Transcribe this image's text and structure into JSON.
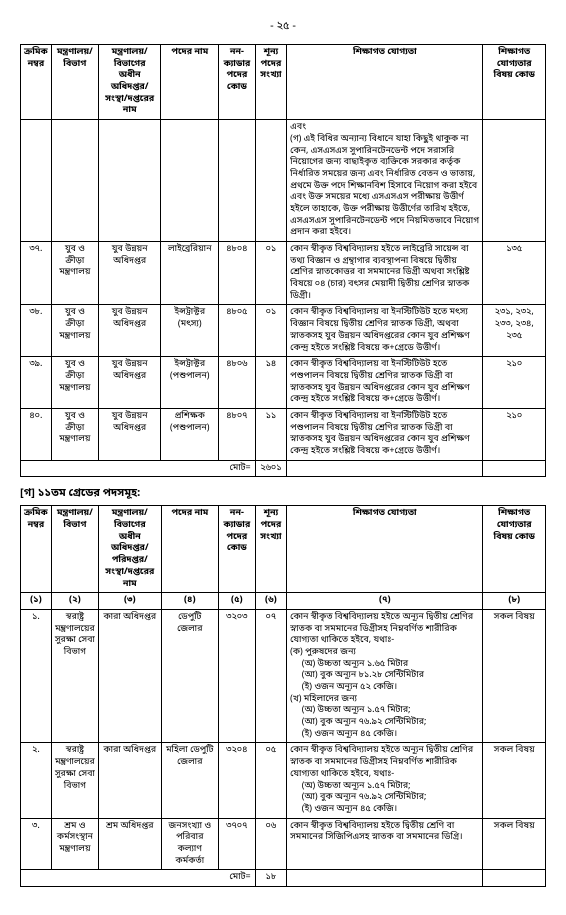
{
  "page_number": "- ২৫ -",
  "table1": {
    "headers": {
      "serial": "ক্রমিক নম্বর",
      "ministry": "মন্ত্রণালয়/ বিভাগ",
      "dept": "মন্ত্রণালয়/বিভাগের অধীন অধিদপ্তর/ সংস্থা/দপ্তরের নাম",
      "post": "পদের নাম",
      "code": "নন-ক্যাডার পদের কোড",
      "count": "শূন্য পদের সংখ্যা",
      "qual": "শিক্ষাগত যোগ্যতা",
      "subcode": "শিক্ষাগত যোগ্যতার বিষয় কোড"
    },
    "rows": [
      {
        "serial": "",
        "ministry": "",
        "dept": "",
        "post": "",
        "code": "",
        "count": "",
        "qual": "এবং\n(গ) এই বিধির অন্যান্য বিধানে যাহা কিছুই থাকুক না কেন, এসএসএস সুপারিনটেনডেন্ট পদে সরাসরি নিয়োগের জন্য বাছাইকৃত ব্যক্তিকে সরকার কর্তৃক নির্ধারিত সময়ের জন্য এবং নির্ধারিত বেতন ও ভাতায়, প্রথমে উক্ত পদে শিক্ষানবিশ হিসাবে নিয়োগ করা হইবে এবং উক্ত সময়ের মধ্যে এসএসএস পরীক্ষায় উত্তীর্ণ হইলে তাহাকে, উক্ত পরীক্ষায় উত্তীর্ণের তারিখ হইতে, এসএসএস সুপারিনটেনডেন্ট পদে নিয়মিতভাবে নিয়োগ প্রদান করা হইবে।",
        "subcode": ""
      },
      {
        "serial": "৩৭.",
        "ministry": "যুব ও ক্রীড়া মন্ত্রণালয়",
        "dept": "যুব উন্নয়ন অধিদপ্তর",
        "post": "লাইব্রেরিয়ান",
        "code": "৪৮০৪",
        "count": "০১",
        "qual": "কোন স্বীকৃত বিশ্ববিদ্যালয় হইতে লাইব্রেরি সায়েন্স বা তথ্য বিজ্ঞান ও গ্রন্থাগার ব্যবস্থাপনা বিষয়ে দ্বিতীয় শ্রেণির স্নাতকোত্তর বা সমমানের ডিগ্রী অথবা সংশ্লিষ্ট বিষয়ে ০৪ (চার) বৎসর মেয়াদী দ্বিতীয় শ্রেণির স্নাতক ডিগ্রী।",
        "subcode": "১৩৫"
      },
      {
        "serial": "৩৮.",
        "ministry": "যুব ও ক্রীড়া মন্ত্রণালয়",
        "dept": "যুব উন্নয়ন অধিদপ্তর",
        "post": "ইন্সট্রাক্টর (মৎস্য)",
        "code": "৪৮০৫",
        "count": "০১",
        "qual": "কোন স্বীকৃত বিশ্ববিদ্যালয় বা ইনস্টিটিউট হতে মৎস্য বিজ্ঞান বিষয়ে দ্বিতীয় শ্রেণির স্নাতক ডিগ্রী, অথবা স্নাতকসহ যুব উন্নয়ন অধিদপ্তরের কোন যুব প্রশিক্ষণ কেন্দ্র হইতে সংশ্লিষ্ট বিষয়ে ক+গ্রেডে উত্তীর্ণ।",
        "subcode": "২৩১, ২৩২, ২৩৩, ২৩৪, ২৩৫"
      },
      {
        "serial": "৩৯.",
        "ministry": "যুব ও ক্রীড়া মন্ত্রণালয়",
        "dept": "যুব উন্নয়ন অধিদপ্তর",
        "post": "ইন্সট্রাক্টর (পশুপালন)",
        "code": "৪৮০৬",
        "count": "১৪",
        "qual": "কোন স্বীকৃত বিশ্ববিদ্যালয় বা ইনস্টিটিউট হতে পশুপালন বিষয়ে দ্বিতীয় শ্রেণির স্নাতক ডিগ্রী বা স্নাতকসহ যুব উন্নয়ন অধিদপ্তরের কোন যুব প্রশিক্ষণ কেন্দ্র হইতে সংশ্লিষ্ট বিষয়ে ক+গ্রেডে উত্তীর্ণ।",
        "subcode": "২১০"
      },
      {
        "serial": "৪০.",
        "ministry": "যুব ও ক্রীড়া মন্ত্রণালয়",
        "dept": "যুব উন্নয়ন অধিদপ্তর",
        "post": "প্রশিক্ষক (পশুপালন)",
        "code": "৪৮০৭",
        "count": "১১",
        "qual": "কোন স্বীকৃত বিশ্ববিদ্যালয় বা ইনস্টিটিউট হতে পশুপালন বিষয়ে দ্বিতীয় শ্রেণির স্নাতক ডিগ্রী বা স্নাতকসহ যুব উন্নয়ন অধিদপ্তরের কোন যুব প্রশিক্ষণ কেন্দ্র হইতে সংশ্লিষ্ট বিষয়ে ক+গ্রেডে উত্তীর্ণ।",
        "subcode": "২১০"
      }
    ],
    "total_label": "মোট=",
    "total_value": "২৬০১"
  },
  "section_title": "[গ] ১১তম গ্রেডের পদসমূহ:",
  "table2": {
    "headers": {
      "serial": "ক্রমিক নম্বর",
      "ministry": "মন্ত্রণালয়/ বিভাগ",
      "dept": "মন্ত্রণালয়/ বিভাগের অধীন অধিদপ্তর/ পরিদপ্তর/ সংস্থা/দপ্তরের নাম",
      "post": "পদের নাম",
      "code": "নন-ক্যাডার পদের কোড",
      "count": "শূন্য পদের সংখ্যা",
      "qual": "শিক্ষাগত যোগ্যতা",
      "subcode": "শিক্ষাগত যোগ্যতার বিষয় কোড"
    },
    "num_row": {
      "c1": "(১)",
      "c2": "(২)",
      "c3": "(৩)",
      "c4": "(৪)",
      "c5": "(৫)",
      "c6": "(৬)",
      "c7": "(৭)",
      "c8": "(৮)"
    },
    "rows": [
      {
        "serial": "১.",
        "ministry": "স্বরাষ্ট্র মন্ত্রণালয়ের সুরক্ষা সেবা বিভাগ",
        "dept": "কারা অধিদপ্তর",
        "post": "ডেপুটি জেলার",
        "code": "৩২০৩",
        "count": "০৭",
        "qual": "কোন স্বীকৃত বিশ্ববিদ্যালয় হইতে অন্যূন দ্বিতীয় শ্রেণির স্নাতক বা সমমানের ডিগ্রীসহ নিম্নবর্ণিত শারীরিক যোগ্যতা থাকিতে হইবে, যথাঃ-\n(ক) পুরুষদের জন্য\n     (অ) উচ্চতা অন্যূন ১.৬৫ মিটার\n     (আ) বুক অন্যূন ৮১.২৮ সেন্টিমিটার\n     (ই) ওজন অন্যূন ৫২ কেজি।\n(খ) মহিলাদের জন্য\n     (অ) উচ্চতা অন্যূন ১.৫৭ মিটার;\n     (আ) বুক অন্যূন ৭৬.৯২ সেন্টিমিটার;\n     (ই) ওজন অন্যূন ৪৫ কেজি।",
        "subcode": "সকল বিষয়"
      },
      {
        "serial": "২.",
        "ministry": "স্বরাষ্ট্র মন্ত্রণালয়ের সুরক্ষা সেবা বিভাগ",
        "dept": "কারা অধিদপ্তর",
        "post": "মহিলা ডেপুটি জেলার",
        "code": "৩২০৪",
        "count": "০৫",
        "qual": "কোন স্বীকৃত বিশ্ববিদ্যালয় হইতে অন্যূন দ্বিতীয় শ্রেণির স্নাতক বা সমমানের ডিগ্রীসহ নিম্নবর্ণিত শারীরিক যোগ্যতা থাকিতে হইবে, যথাঃ-\n     (অ) উচ্চতা অন্যূন ১.৫৭ মিটার;\n     (আ) বুক অন্যূন ৭৬.৯২ সেন্টিমিটার;\n     (ই) ওজন অন্যূন ৪৫ কেজি।",
        "subcode": "সকল বিষয়"
      },
      {
        "serial": "৩.",
        "ministry": "শ্রম ও কর্মসংস্থান মন্ত্রণালয়",
        "dept": "শ্রম অধিদপ্তর",
        "post": "জনসংখ্যা ও পরিবার কল্যাণ কর্মকর্তা",
        "code": "৩৭০৭",
        "count": "০৬",
        "qual": "কোন স্বীকৃত বিশ্ববিদ্যালয় হইতে দ্বিতীয় শ্রেণি বা সমমানের সিজিপিএসহ স্নাতক বা সমমানের ডিগ্রি।",
        "subcode": "সকল বিষয়"
      }
    ],
    "total_label": "মোট=",
    "total_value": "১৮"
  }
}
